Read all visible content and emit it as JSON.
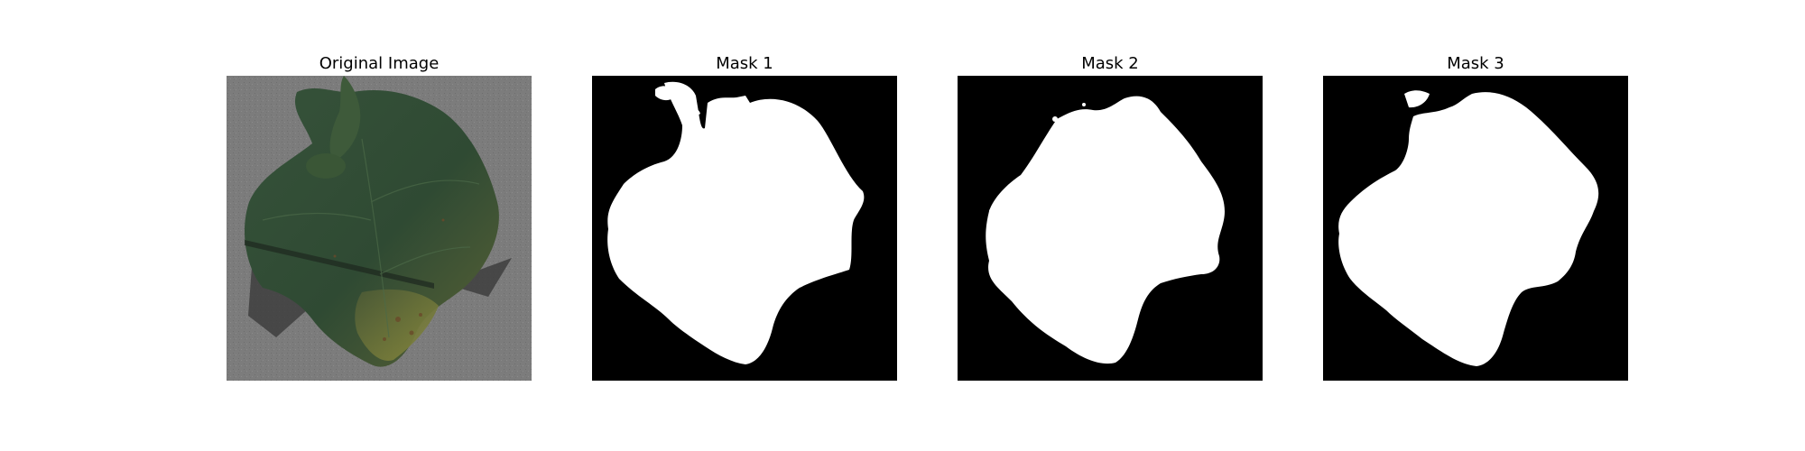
{
  "panels": [
    {
      "title": "Original Image"
    },
    {
      "title": "Mask 1"
    },
    {
      "title": "Mask 2"
    },
    {
      "title": "Mask 3"
    }
  ],
  "colors": {
    "background": "#ffffff",
    "mask_foreground": "#ffffff",
    "mask_background": "#000000",
    "photo_surface": "#7a7a7a",
    "leaf_dark": "#2f4a33",
    "leaf_yellow": "#7d7f3a",
    "shadow": "#3a3a3a"
  }
}
